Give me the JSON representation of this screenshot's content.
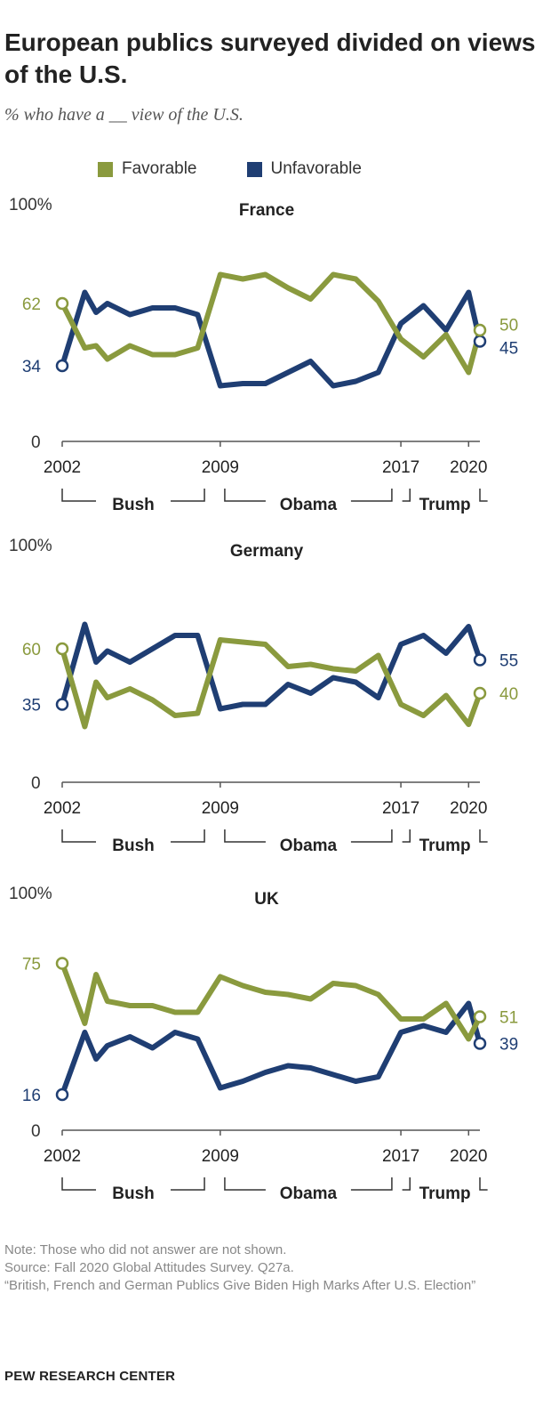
{
  "title": "European publics surveyed divided on views of the U.S.",
  "subtitle": "% who have a __ view of the U.S.",
  "legend": [
    {
      "label": "Favorable",
      "color": "#8a9a3e"
    },
    {
      "label": "Unfavorable",
      "color": "#1f3e73"
    }
  ],
  "colors": {
    "favorable": "#8a9a3e",
    "unfavorable": "#1f3e73",
    "axis": "#555555",
    "bracket": "#333333"
  },
  "chart_data": [
    {
      "type": "line",
      "title": "France",
      "y_max_label": "100%",
      "y_zero_label": "0",
      "ylim": [
        0,
        100
      ],
      "x_tick_labels": [
        "2002",
        "2009",
        "2017",
        "2020"
      ],
      "series": [
        {
          "name": "Favorable",
          "start_label": "62",
          "end_label": "50",
          "points": [
            [
              2002,
              62
            ],
            [
              2003,
              42
            ],
            [
              2003.5,
              43
            ],
            [
              2004,
              37
            ],
            [
              2005,
              43
            ],
            [
              2006,
              39
            ],
            [
              2007,
              39
            ],
            [
              2008,
              42
            ],
            [
              2009,
              75
            ],
            [
              2010,
              73
            ],
            [
              2011,
              75
            ],
            [
              2012,
              69
            ],
            [
              2013,
              64
            ],
            [
              2014,
              75
            ],
            [
              2015,
              73
            ],
            [
              2016,
              63
            ],
            [
              2017,
              46
            ],
            [
              2018,
              38
            ],
            [
              2019,
              48
            ],
            [
              2020,
              31
            ],
            [
              2020.5,
              50
            ]
          ]
        },
        {
          "name": "Unfavorable",
          "start_label": "34",
          "end_label": "45",
          "points": [
            [
              2002,
              34
            ],
            [
              2003,
              67
            ],
            [
              2003.5,
              58
            ],
            [
              2004,
              62
            ],
            [
              2005,
              57
            ],
            [
              2006,
              60
            ],
            [
              2007,
              60
            ],
            [
              2008,
              57
            ],
            [
              2009,
              25
            ],
            [
              2010,
              26
            ],
            [
              2011,
              26
            ],
            [
              2012,
              31
            ],
            [
              2013,
              36
            ],
            [
              2014,
              25
            ],
            [
              2015,
              27
            ],
            [
              2016,
              31
            ],
            [
              2017,
              53
            ],
            [
              2018,
              61
            ],
            [
              2019,
              50
            ],
            [
              2020,
              67
            ],
            [
              2020.5,
              45
            ]
          ]
        }
      ],
      "eras": [
        {
          "label": "Bush"
        },
        {
          "label": "Obama"
        },
        {
          "label": "Trump"
        }
      ]
    },
    {
      "type": "line",
      "title": "Germany",
      "y_max_label": "100%",
      "y_zero_label": "0",
      "ylim": [
        0,
        100
      ],
      "x_tick_labels": [
        "2002",
        "2009",
        "2017",
        "2020"
      ],
      "series": [
        {
          "name": "Favorable",
          "start_label": "60",
          "end_label": "40",
          "points": [
            [
              2002,
              60
            ],
            [
              2003,
              25
            ],
            [
              2003.5,
              45
            ],
            [
              2004,
              38
            ],
            [
              2005,
              42
            ],
            [
              2006,
              37
            ],
            [
              2007,
              30
            ],
            [
              2008,
              31
            ],
            [
              2009,
              64
            ],
            [
              2010,
              63
            ],
            [
              2011,
              62
            ],
            [
              2012,
              52
            ],
            [
              2013,
              53
            ],
            [
              2014,
              51
            ],
            [
              2015,
              50
            ],
            [
              2016,
              57
            ],
            [
              2017,
              35
            ],
            [
              2018,
              30
            ],
            [
              2019,
              39
            ],
            [
              2020,
              26
            ],
            [
              2020.5,
              40
            ]
          ]
        },
        {
          "name": "Unfavorable",
          "start_label": "35",
          "end_label": "55",
          "points": [
            [
              2002,
              35
            ],
            [
              2003,
              71
            ],
            [
              2003.5,
              54
            ],
            [
              2004,
              59
            ],
            [
              2005,
              54
            ],
            [
              2006,
              60
            ],
            [
              2007,
              66
            ],
            [
              2008,
              66
            ],
            [
              2009,
              33
            ],
            [
              2010,
              35
            ],
            [
              2011,
              35
            ],
            [
              2012,
              44
            ],
            [
              2013,
              40
            ],
            [
              2014,
              47
            ],
            [
              2015,
              45
            ],
            [
              2016,
              38
            ],
            [
              2017,
              62
            ],
            [
              2018,
              66
            ],
            [
              2019,
              58
            ],
            [
              2020,
              70
            ],
            [
              2020.5,
              55
            ]
          ]
        }
      ],
      "eras": [
        {
          "label": "Bush"
        },
        {
          "label": "Obama"
        },
        {
          "label": "Trump"
        }
      ]
    },
    {
      "type": "line",
      "title": "UK",
      "y_max_label": "100%",
      "y_zero_label": "0",
      "ylim": [
        0,
        100
      ],
      "x_tick_labels": [
        "2002",
        "2009",
        "2017",
        "2020"
      ],
      "series": [
        {
          "name": "Favorable",
          "start_label": "75",
          "end_label": "51",
          "points": [
            [
              2002,
              75
            ],
            [
              2003,
              48
            ],
            [
              2003.5,
              70
            ],
            [
              2004,
              58
            ],
            [
              2005,
              56
            ],
            [
              2006,
              56
            ],
            [
              2007,
              53
            ],
            [
              2008,
              53
            ],
            [
              2009,
              69
            ],
            [
              2010,
              65
            ],
            [
              2011,
              62
            ],
            [
              2012,
              61
            ],
            [
              2013,
              59
            ],
            [
              2014,
              66
            ],
            [
              2015,
              65
            ],
            [
              2016,
              61
            ],
            [
              2017,
              50
            ],
            [
              2018,
              50
            ],
            [
              2019,
              57
            ],
            [
              2020,
              41
            ],
            [
              2020.5,
              51
            ]
          ]
        },
        {
          "name": "Unfavorable",
          "start_label": "16",
          "end_label": "39",
          "points": [
            [
              2002,
              16
            ],
            [
              2003,
              44
            ],
            [
              2003.5,
              32
            ],
            [
              2004,
              38
            ],
            [
              2005,
              42
            ],
            [
              2006,
              37
            ],
            [
              2007,
              44
            ],
            [
              2008,
              41
            ],
            [
              2009,
              19
            ],
            [
              2010,
              22
            ],
            [
              2011,
              26
            ],
            [
              2012,
              29
            ],
            [
              2013,
              28
            ],
            [
              2014,
              25
            ],
            [
              2015,
              22
            ],
            [
              2016,
              24
            ],
            [
              2017,
              44
            ],
            [
              2018,
              47
            ],
            [
              2019,
              44
            ],
            [
              2020,
              57
            ],
            [
              2020.5,
              39
            ]
          ]
        }
      ],
      "eras": [
        {
          "label": "Bush"
        },
        {
          "label": "Obama"
        },
        {
          "label": "Trump"
        }
      ]
    }
  ],
  "footer": {
    "note": "Note: Those who did not answer are not shown.",
    "source": "Source: Fall 2020 Global Attitudes Survey. Q27a.",
    "report": "“British, French and German Publics Give Biden High Marks After U.S. Election”",
    "brand": "PEW RESEARCH CENTER"
  }
}
